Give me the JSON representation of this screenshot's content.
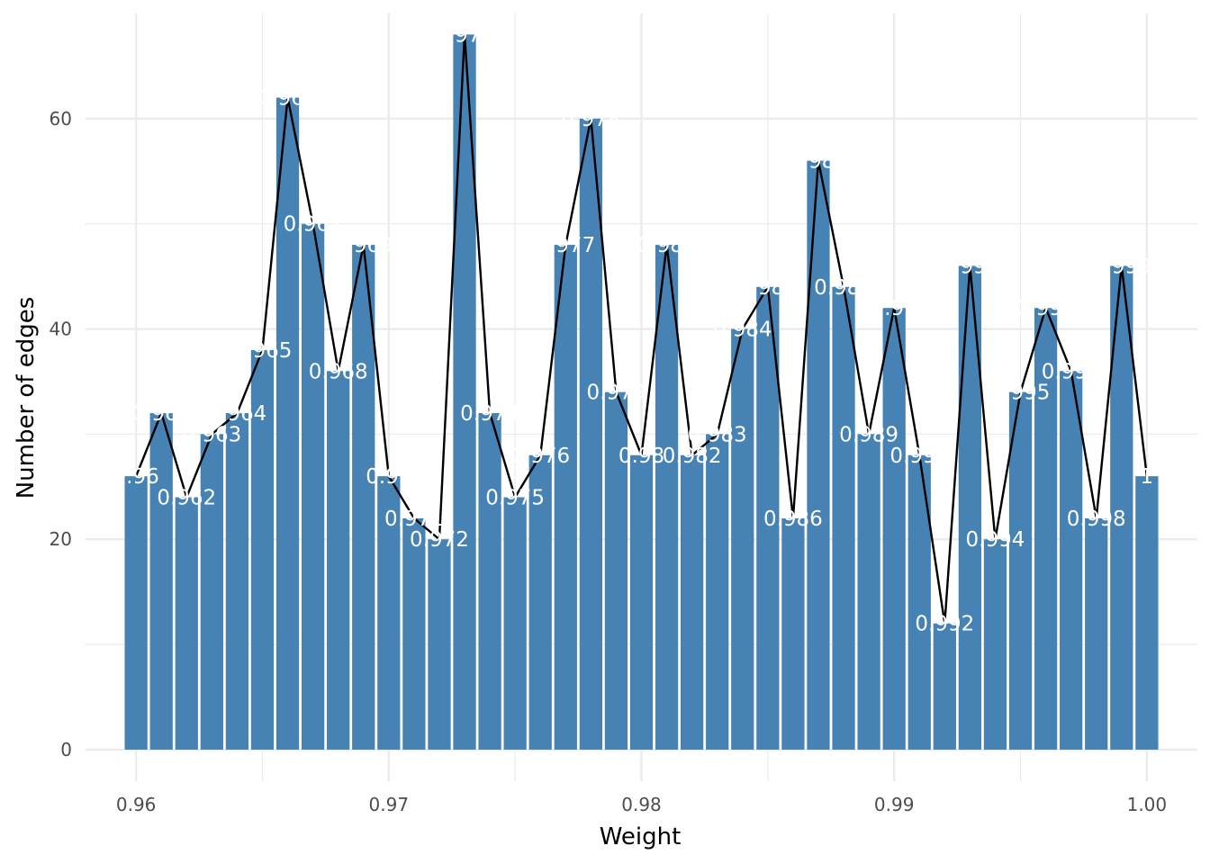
{
  "chart_data": {
    "type": "bar",
    "title": "",
    "xlabel": "Weight",
    "ylabel": "Number of edges",
    "xlim": [
      0.958,
      1.002
    ],
    "ylim": [
      -3,
      70
    ],
    "x_ticks": [
      0.96,
      0.97,
      0.98,
      0.99,
      1.0
    ],
    "x_tick_labels": [
      "0.96",
      "0.97",
      "0.98",
      "0.99",
      "1.00"
    ],
    "y_ticks": [
      0,
      20,
      40,
      60
    ],
    "y_tick_labels": [
      "0",
      "20",
      "40",
      "60"
    ],
    "grid": true,
    "legend": "none",
    "colors": {
      "bar": "#4682B4",
      "line": "#000000",
      "label": "#ffffff",
      "grid": "#ebebeb",
      "text": "#4d4d4d"
    },
    "x": [
      0.96,
      0.961,
      0.962,
      0.963,
      0.964,
      0.965,
      0.966,
      0.967,
      0.968,
      0.969,
      0.97,
      0.971,
      0.972,
      0.973,
      0.974,
      0.975,
      0.976,
      0.977,
      0.978,
      0.979,
      0.98,
      0.981,
      0.982,
      0.983,
      0.984,
      0.985,
      0.986,
      0.987,
      0.988,
      0.989,
      0.99,
      0.991,
      0.992,
      0.993,
      0.994,
      0.995,
      0.996,
      0.997,
      0.998,
      0.999,
      1.0
    ],
    "labels": [
      "0.96",
      "0.961",
      "0.962",
      "0.963",
      "0.964",
      "0.965",
      "0.966",
      "0.967",
      "0.968",
      "0.969",
      "0.97",
      "0.971",
      "0.972",
      "0.973",
      "0.974",
      "0.975",
      "0.976",
      "0.977",
      "0.978",
      "0.979",
      "0.98",
      "0.981",
      "0.982",
      "0.983",
      "0.984",
      "0.985",
      "0.986",
      "0.987",
      "0.988",
      "0.989",
      "0.99",
      "0.991",
      "0.992",
      "0.993",
      "0.994",
      "0.995",
      "0.996",
      "0.997",
      "0.998",
      "0.999",
      "1"
    ],
    "values": [
      26,
      32,
      24,
      30,
      32,
      38,
      62,
      50,
      36,
      48,
      26,
      22,
      20,
      68,
      32,
      24,
      28,
      48,
      60,
      34,
      28,
      48,
      28,
      30,
      40,
      44,
      22,
      56,
      44,
      30,
      42,
      28,
      12,
      46,
      20,
      34,
      42,
      36,
      22,
      46,
      26
    ]
  }
}
